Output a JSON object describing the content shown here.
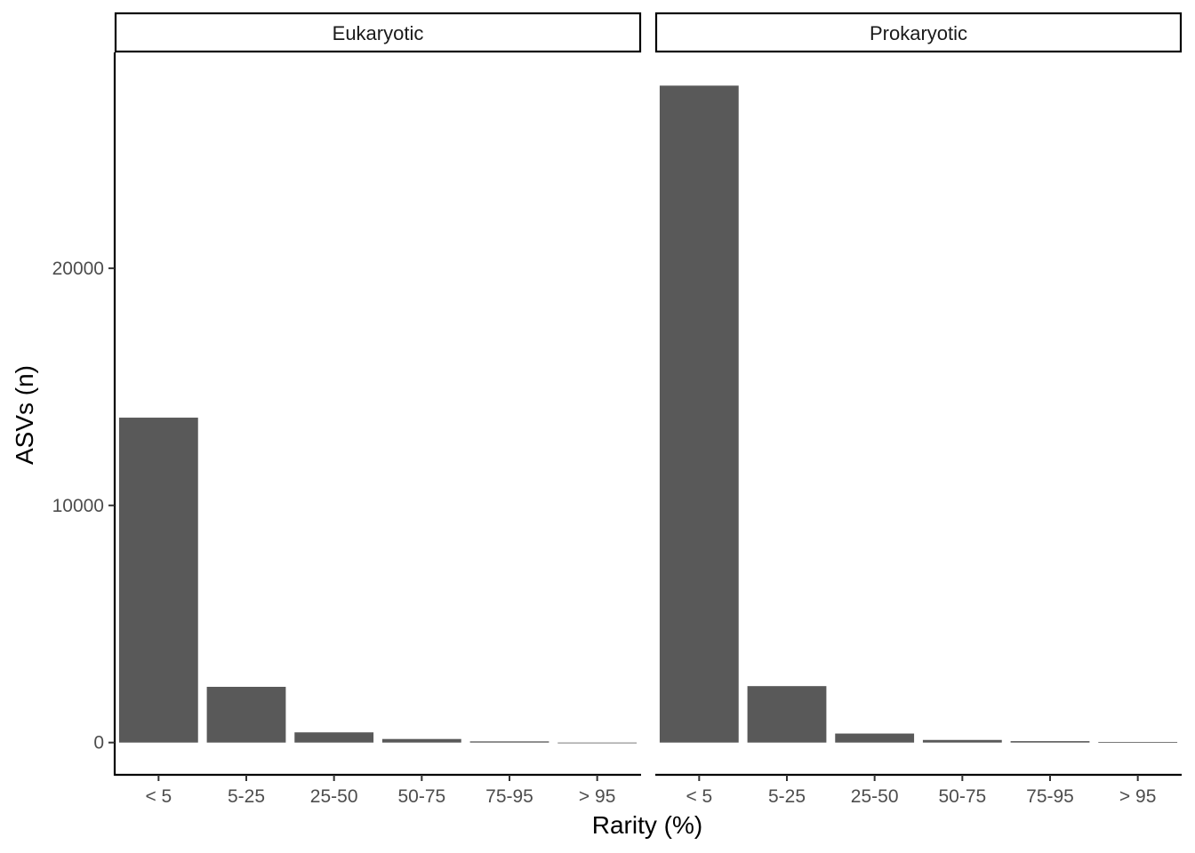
{
  "chart_data": {
    "type": "bar",
    "facets": [
      {
        "name": "Eukaryotic",
        "categories": [
          "< 5",
          "5-25",
          "25-50",
          "50-75",
          "75-95",
          "> 95"
        ],
        "values": [
          13700,
          2350,
          430,
          150,
          50,
          0
        ]
      },
      {
        "name": "Prokaryotic",
        "categories": [
          "< 5",
          "5-25",
          "25-50",
          "50-75",
          "75-95",
          "> 95"
        ],
        "values": [
          27700,
          2380,
          380,
          110,
          60,
          25
        ]
      }
    ],
    "xlabel": "Rarity (%)",
    "ylabel": "ASVs (n)",
    "ylim": [
      -1360,
      29100
    ],
    "yticks": [
      0,
      10000,
      20000
    ],
    "ytick_labels": [
      "0",
      "10000",
      "20000"
    ],
    "grid": false,
    "legend": "none",
    "bar_color": "#595959"
  }
}
